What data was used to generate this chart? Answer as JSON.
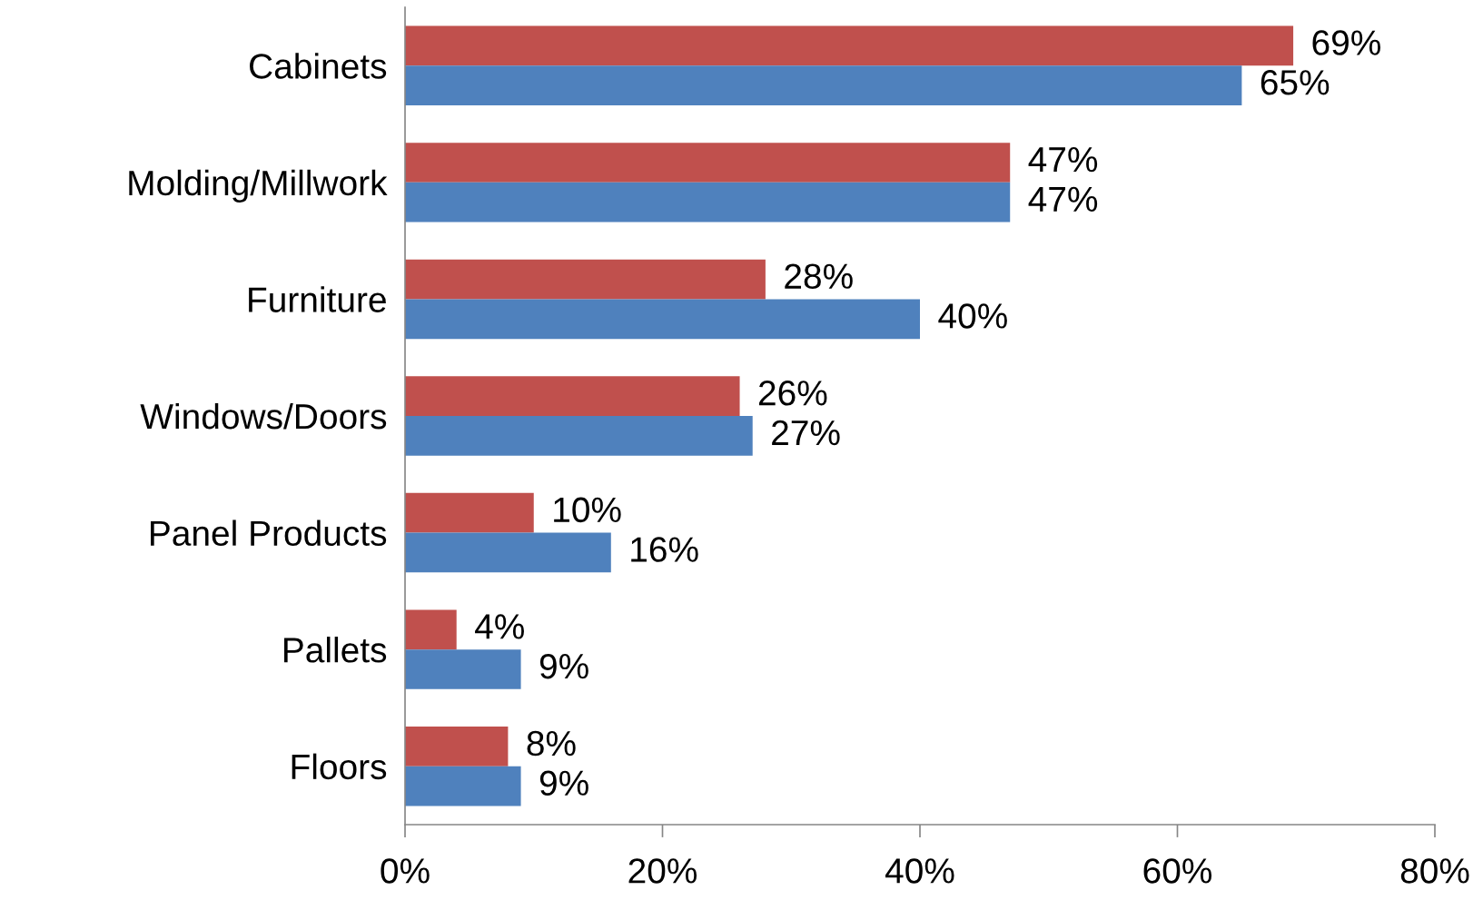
{
  "chart_data": {
    "type": "bar",
    "orientation": "horizontal",
    "categories": [
      "Cabinets",
      "Molding/Millwork",
      "Furniture",
      "Windows/Doors",
      "Panel Products",
      "Pallets",
      "Floors"
    ],
    "series": [
      {
        "color": "#c0504d",
        "values": [
          69,
          47,
          28,
          26,
          10,
          4,
          8
        ],
        "value_labels": [
          "69%",
          "47%",
          "28%",
          "26%",
          "10%",
          "4%",
          "8%"
        ]
      },
      {
        "color": "#4f81bd",
        "values": [
          65,
          47,
          40,
          27,
          16,
          9,
          9
        ],
        "value_labels": [
          "65%",
          "47%",
          "40%",
          "27%",
          "16%",
          "9%",
          "9%"
        ]
      }
    ],
    "xlim": [
      0,
      80
    ],
    "xticks": [
      {
        "value": 0,
        "label": "0%"
      },
      {
        "value": 20,
        "label": "20%"
      },
      {
        "value": 40,
        "label": "40%"
      },
      {
        "value": 60,
        "label": "60%"
      },
      {
        "value": 80,
        "label": "80%"
      }
    ],
    "grid": false
  }
}
